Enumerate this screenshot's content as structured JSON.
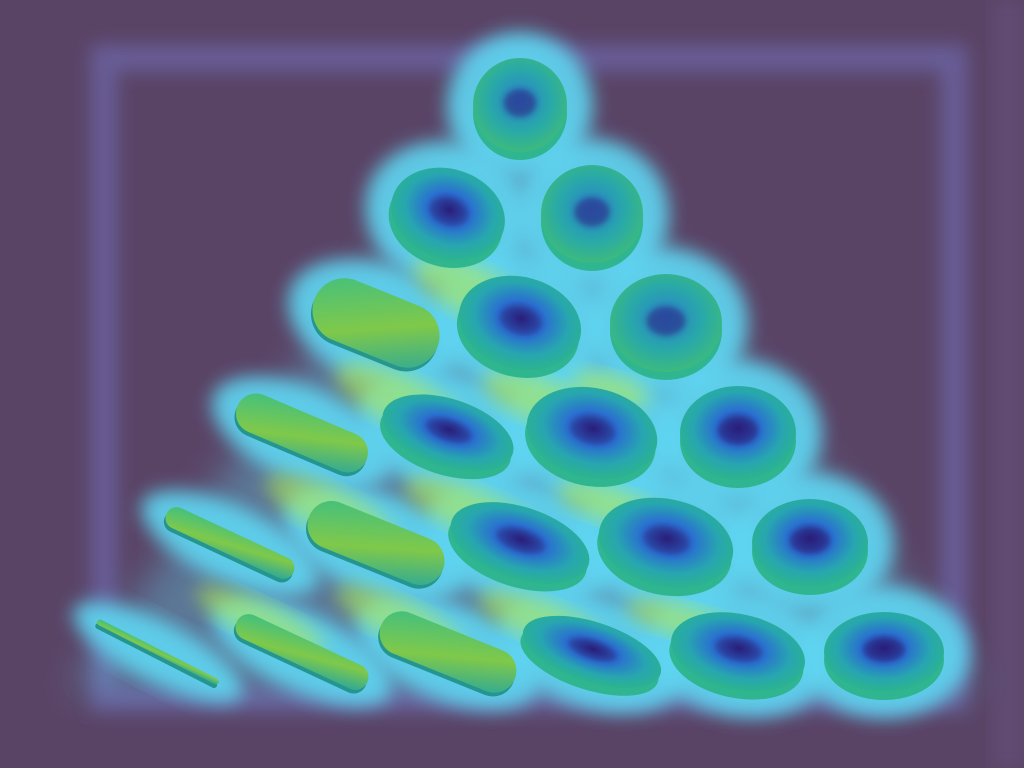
{
  "scene": {
    "description_visible_text": "",
    "colors": {
      "background": "#5a4466",
      "frame": "#6a62a0",
      "halo": "#5fd6f2",
      "glow_yellow": "#b8ee4a",
      "object_outer": "#2cb48c",
      "object_mid": "#2a8fc8",
      "object_inner": "#2a1f7a",
      "object_stripe": "#9ad43c"
    },
    "rows": [
      {
        "row": 1,
        "object_count": 1
      },
      {
        "row": 2,
        "object_count": 2
      },
      {
        "row": 3,
        "object_count": 3
      },
      {
        "row": 4,
        "object_count": 4
      },
      {
        "row": 5,
        "object_count": 5
      },
      {
        "row": 6,
        "object_count": 6
      }
    ]
  }
}
